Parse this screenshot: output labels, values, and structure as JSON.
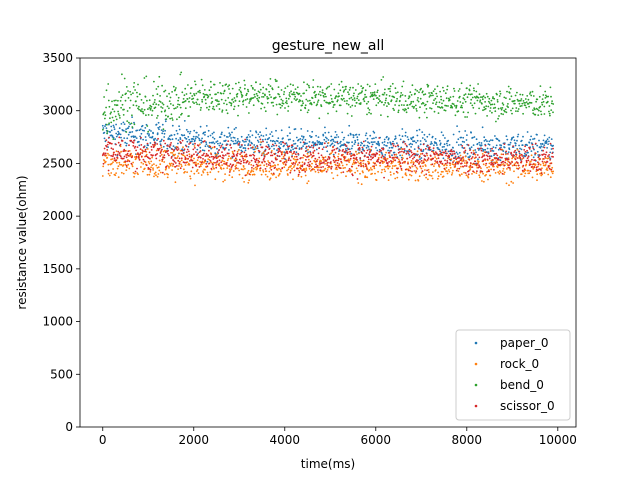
{
  "chart_data": {
    "type": "scatter",
    "title": "gesture_new_all",
    "xlabel": "time(ms)",
    "ylabel": "resistance value(ohm)",
    "xlim": [
      -500,
      10400
    ],
    "ylim": [
      0,
      3500
    ],
    "xticks": [
      0,
      2000,
      4000,
      6000,
      8000,
      10000
    ],
    "yticks": [
      0,
      500,
      1000,
      1500,
      2000,
      2500,
      3000,
      3500
    ],
    "grid": false,
    "legend_position": "lower-right",
    "x_range": [
      0,
      9900
    ],
    "x_step": 10,
    "series": [
      {
        "name": "paper_0",
        "color": "#1f77b4",
        "profile_x": [
          0,
          1000,
          2000,
          3000,
          4000,
          5000,
          6000,
          7000,
          8000,
          9000,
          9900
        ],
        "profile_center": [
          2780,
          2760,
          2720,
          2700,
          2690,
          2680,
          2680,
          2670,
          2660,
          2660,
          2650
        ],
        "profile_spread": [
          150,
          150,
          140,
          130,
          130,
          130,
          130,
          130,
          130,
          130,
          130
        ]
      },
      {
        "name": "rock_0",
        "color": "#ff7f0e",
        "profile_x": [
          0,
          1000,
          2000,
          3000,
          4000,
          5000,
          6000,
          7000,
          8000,
          9000,
          9900
        ],
        "profile_center": [
          2520,
          2510,
          2500,
          2490,
          2490,
          2480,
          2480,
          2470,
          2470,
          2470,
          2460
        ],
        "profile_spread": [
          160,
          150,
          150,
          150,
          140,
          140,
          140,
          140,
          140,
          140,
          140
        ]
      },
      {
        "name": "bend_0",
        "color": "#2ca02c",
        "profile_x": [
          0,
          500,
          1000,
          2000,
          3000,
          4000,
          5000,
          6000,
          7000,
          8000,
          9000,
          9900
        ],
        "profile_center": [
          3000,
          3100,
          3050,
          3120,
          3150,
          3140,
          3120,
          3120,
          3100,
          3100,
          3080,
          3060
        ],
        "profile_spread": [
          300,
          250,
          220,
          170,
          160,
          150,
          150,
          150,
          150,
          150,
          150,
          140
        ]
      },
      {
        "name": "scissor_0",
        "color": "#d62728",
        "profile_x": [
          0,
          1000,
          2000,
          3000,
          4000,
          5000,
          6000,
          7000,
          8000,
          9000,
          9900
        ],
        "profile_center": [
          2620,
          2590,
          2580,
          2570,
          2560,
          2560,
          2550,
          2550,
          2550,
          2540,
          2540
        ],
        "profile_spread": [
          160,
          140,
          140,
          140,
          140,
          140,
          140,
          140,
          140,
          140,
          140
        ]
      }
    ]
  }
}
